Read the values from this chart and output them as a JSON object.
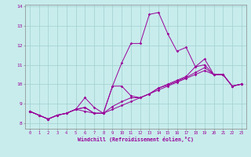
{
  "xlabel": "Windchill (Refroidissement éolien,°C)",
  "bg_color": "#c8ecec",
  "line_color": "#990099",
  "grid_color": "#aadddd",
  "ylim": [
    7.7,
    14.1
  ],
  "xlim": [
    -0.5,
    23.5
  ],
  "yticks": [
    8,
    9,
    10,
    11,
    12,
    13,
    14
  ],
  "xticks": [
    0,
    1,
    2,
    3,
    4,
    5,
    6,
    7,
    8,
    9,
    10,
    11,
    12,
    13,
    14,
    15,
    16,
    17,
    18,
    19,
    20,
    21,
    22,
    23
  ],
  "series": [
    [
      8.6,
      8.4,
      8.2,
      8.4,
      8.5,
      8.7,
      9.3,
      8.8,
      8.5,
      9.9,
      11.1,
      12.1,
      12.1,
      13.6,
      13.7,
      12.6,
      11.7,
      11.9,
      10.9,
      11.3,
      10.5,
      10.5,
      9.9,
      10.0
    ],
    [
      8.6,
      8.4,
      8.2,
      8.4,
      8.5,
      8.7,
      8.8,
      8.5,
      8.5,
      9.9,
      9.9,
      9.4,
      9.3,
      9.5,
      9.8,
      10.0,
      10.2,
      10.4,
      10.9,
      11.0,
      10.5,
      10.5,
      9.9,
      10.0
    ],
    [
      8.6,
      8.4,
      8.2,
      8.4,
      8.5,
      8.7,
      8.8,
      8.5,
      8.5,
      8.85,
      9.1,
      9.3,
      9.3,
      9.5,
      9.8,
      9.95,
      10.15,
      10.35,
      10.6,
      10.85,
      10.5,
      10.5,
      9.9,
      10.0
    ],
    [
      8.6,
      8.4,
      8.2,
      8.4,
      8.5,
      8.7,
      8.6,
      8.5,
      8.5,
      8.7,
      8.9,
      9.1,
      9.3,
      9.5,
      9.7,
      9.9,
      10.1,
      10.3,
      10.5,
      10.7,
      10.5,
      10.5,
      9.9,
      10.0
    ]
  ]
}
